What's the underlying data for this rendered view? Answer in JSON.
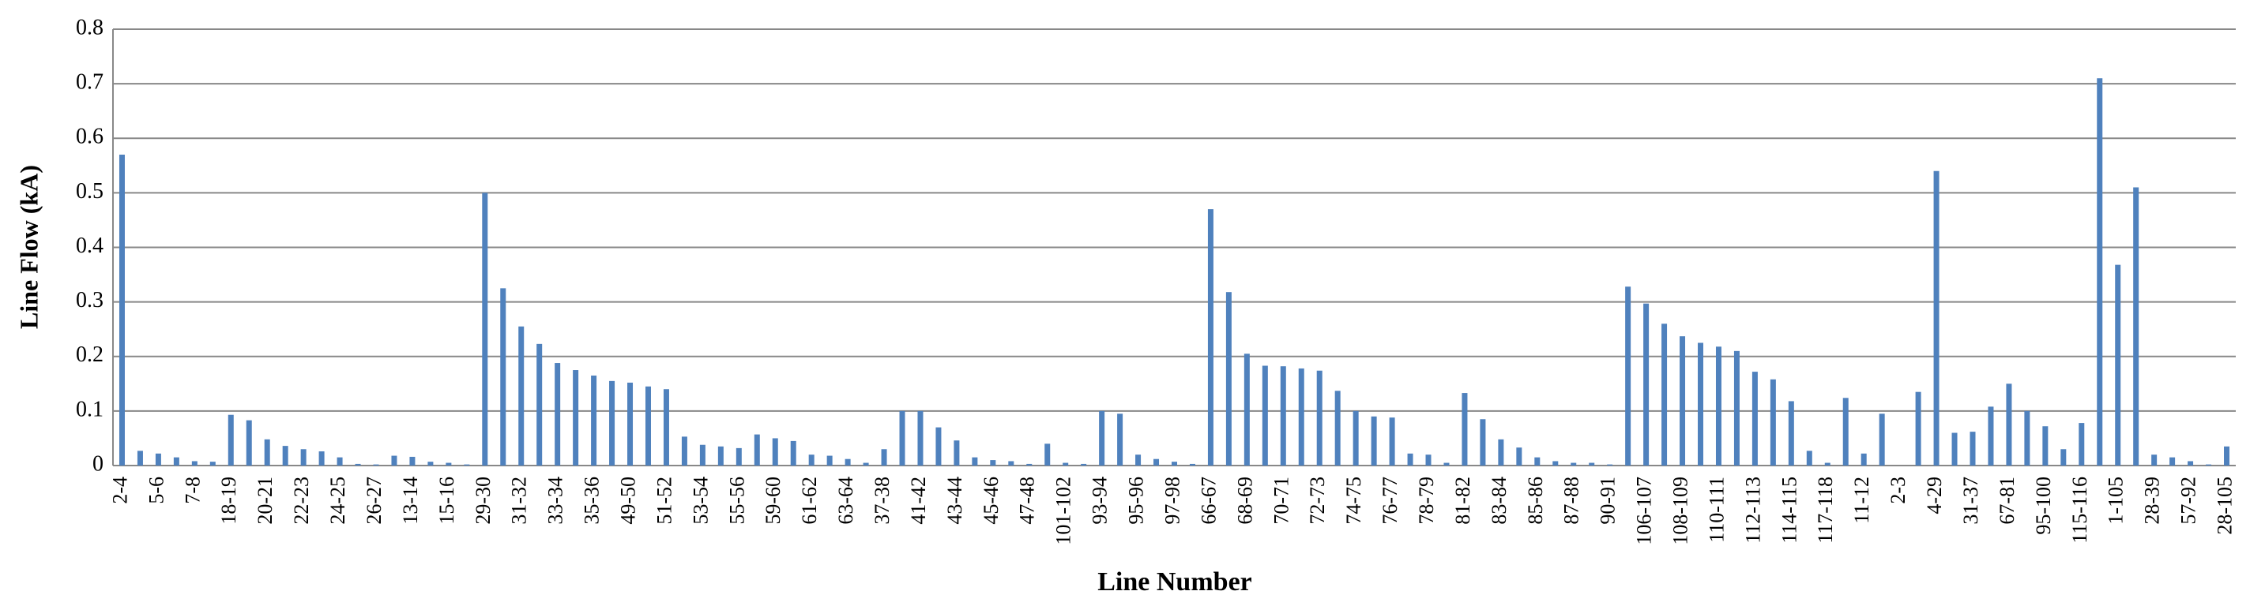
{
  "chart_data": {
    "type": "bar",
    "x_label": "Line Number",
    "y_label": "Line Flow (kA)",
    "categories": [
      "2-4",
      null,
      "5-6",
      null,
      "7-8",
      null,
      "18-19",
      null,
      "20-21",
      null,
      "22-23",
      null,
      "24-25",
      null,
      "26-27",
      null,
      "13-14",
      null,
      "15-16",
      null,
      "29-30",
      null,
      "31-32",
      null,
      "33-34",
      null,
      "35-36",
      null,
      "49-50",
      null,
      "51-52",
      null,
      "53-54",
      null,
      "55-56",
      null,
      "59-60",
      null,
      "61-62",
      null,
      "63-64",
      null,
      "37-38",
      null,
      "41-42",
      null,
      "43-44",
      null,
      "45-46",
      null,
      "47-48",
      null,
      "101-102",
      null,
      "93-94",
      null,
      "95-96",
      null,
      "97-98",
      null,
      "66-67",
      null,
      "68-69",
      null,
      "70-71",
      null,
      "72-73",
      null,
      "74-75",
      null,
      "76-77",
      null,
      "78-79",
      null,
      "81-82",
      null,
      "83-84",
      null,
      "85-86",
      null,
      "87-88",
      null,
      "90-91",
      null,
      "106-107",
      null,
      "108-109",
      null,
      "110-111",
      null,
      "112-113",
      null,
      "114-115",
      null,
      "117-118",
      null,
      "11-12",
      null,
      "2-3",
      null,
      "4-29",
      null,
      "31-37",
      null,
      "67-81",
      null,
      "95-100",
      null,
      "115-116",
      null,
      "1-105",
      null,
      "28-39",
      null,
      "57-92",
      null,
      "28-105"
    ],
    "values": [
      0.57,
      0.027,
      0.022,
      0.015,
      0.008,
      0.007,
      0.093,
      0.083,
      0.048,
      0.036,
      0.03,
      0.026,
      0.015,
      0.003,
      0.002,
      0.018,
      0.016,
      0.007,
      0.005,
      0.002,
      0.5,
      0.325,
      0.255,
      0.223,
      0.188,
      0.175,
      0.165,
      0.155,
      0.152,
      0.145,
      0.14,
      0.053,
      0.038,
      0.035,
      0.032,
      0.057,
      0.05,
      0.045,
      0.02,
      0.018,
      0.012,
      0.005,
      0.03,
      0.1,
      0.1,
      0.07,
      0.046,
      0.015,
      0.01,
      0.008,
      0.003,
      0.04,
      0.005,
      0.003,
      0.1,
      0.095,
      0.02,
      0.012,
      0.007,
      0.003,
      0.47,
      0.318,
      0.205,
      0.183,
      0.182,
      0.178,
      0.174,
      0.137,
      0.1,
      0.09,
      0.088,
      0.022,
      0.02,
      0.005,
      0.133,
      0.085,
      0.048,
      0.033,
      0.015,
      0.008,
      0.005,
      0.005,
      0.002,
      0.328,
      0.297,
      0.26,
      0.237,
      0.225,
      0.218,
      0.21,
      0.172,
      0.158,
      0.118,
      0.027,
      0.005,
      0.124,
      0.022,
      0.095,
      0,
      0.135,
      0.54,
      0.06,
      0.062,
      0.108,
      0.15,
      0.1,
      0.072,
      0.03,
      0.078,
      0.71,
      0.368,
      0.51,
      0.02,
      0.015,
      0.008,
      0.002,
      0.035
    ],
    "color": "#4f81bd",
    "ylim": [
      0,
      0.8
    ],
    "yticks": [
      0,
      0.1,
      0.2,
      0.3,
      0.4,
      0.5,
      0.6,
      0.7,
      0.8
    ],
    "grid": true
  }
}
